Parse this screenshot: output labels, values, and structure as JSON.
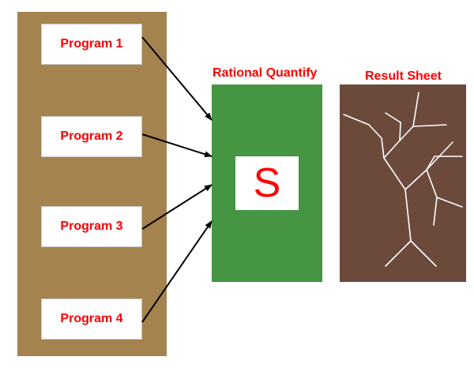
{
  "programs": [
    {
      "label": "Program 1"
    },
    {
      "label": "Program 2"
    },
    {
      "label": "Program 3"
    },
    {
      "label": "Program 4"
    }
  ],
  "quantify": {
    "title": "Rational Quantify",
    "symbol": "S"
  },
  "result": {
    "title": "Result Sheet"
  },
  "colors": {
    "left_panel": "#a4834f",
    "quantify_panel": "#459543",
    "result_panel": "#6b4a3c",
    "label_text": "#ff0000"
  }
}
